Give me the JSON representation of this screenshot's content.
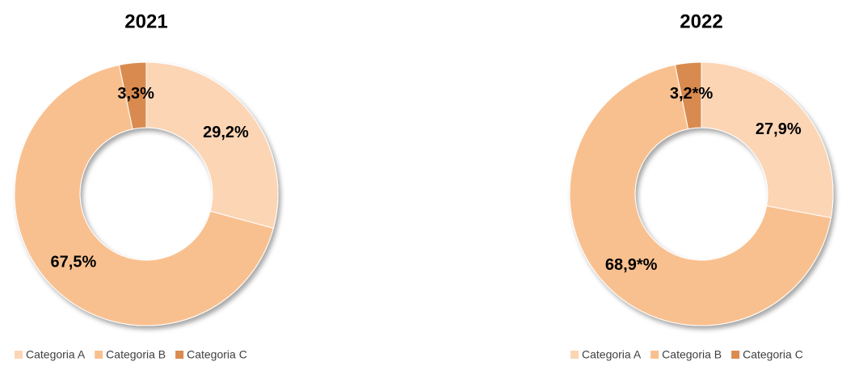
{
  "chart_data": [
    {
      "type": "donut",
      "title": "2021",
      "categories": [
        "Categoria A",
        "Categoria B",
        "Categoria C"
      ],
      "values": [
        29.2,
        67.5,
        3.3
      ],
      "value_labels": [
        "29,2%",
        "67,5%",
        "3,3%"
      ],
      "colors": [
        "#fcd5b5",
        "#f9c08f",
        "#d98b50"
      ],
      "legend": "bottom"
    },
    {
      "type": "donut",
      "title": "2022",
      "categories": [
        "Categoria A",
        "Categoria B",
        "Categoria C"
      ],
      "values": [
        27.9,
        68.9,
        3.2
      ],
      "value_labels": [
        "27,9%",
        "68,9*%",
        "3,2*%"
      ],
      "colors": [
        "#fcd5b5",
        "#f9c08f",
        "#d98b50"
      ],
      "legend": "bottom"
    }
  ]
}
